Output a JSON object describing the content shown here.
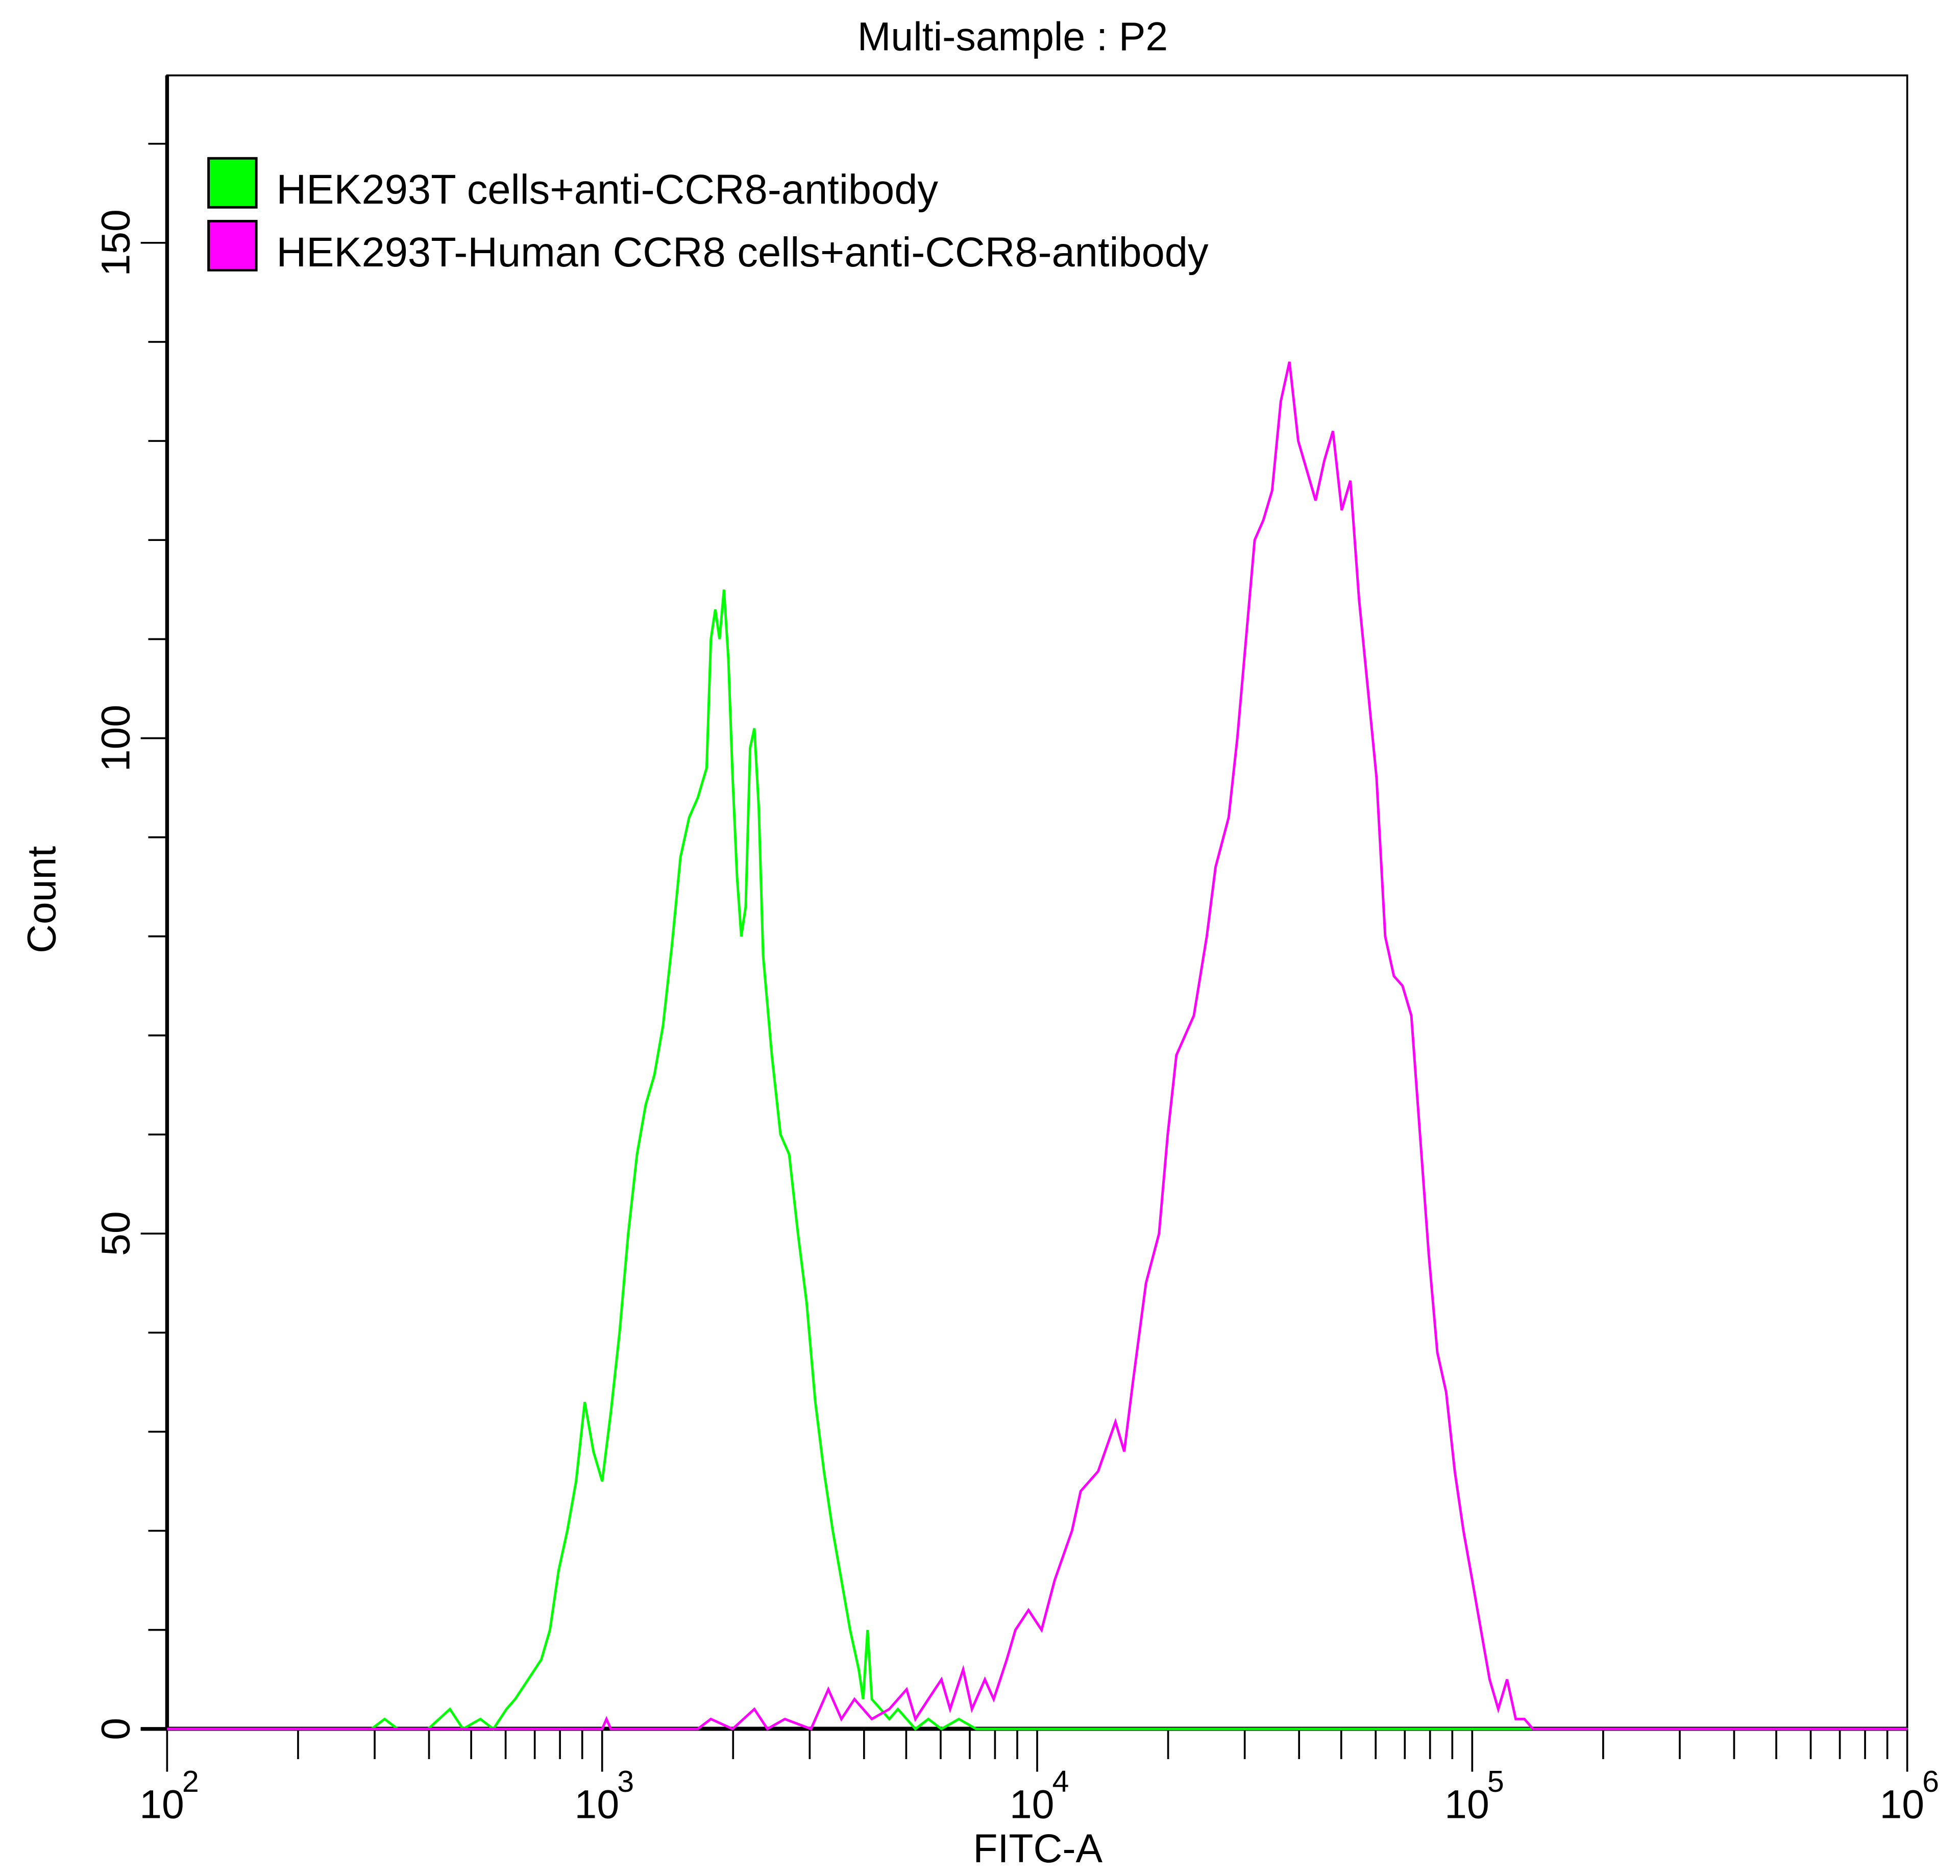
{
  "chart_data": {
    "type": "line",
    "title": "Multi-sample : P2",
    "xlabel": "FITC-A",
    "ylabel": "Count",
    "x_scale": "log10",
    "xlim": [
      100,
      1000000
    ],
    "ylim": [
      0,
      166
    ],
    "x_tick_labels": [
      {
        "base": "10",
        "exp": "2",
        "value": 100
      },
      {
        "base": "10",
        "exp": "3",
        "value": 1000
      },
      {
        "base": "10",
        "exp": "4",
        "value": 10000
      },
      {
        "base": "10",
        "exp": "5",
        "value": 100000
      },
      {
        "base": "10",
        "exp": "6",
        "value": 1000000
      }
    ],
    "y_ticks": [
      0,
      50,
      100,
      150
    ],
    "y_minor_step": 10,
    "grid": false,
    "legend_position": "top-left",
    "series": [
      {
        "name": "HEK293T cells+anti-CCR8-antibody",
        "color": "#00ff00",
        "points_log10x_count": [
          [
            2.0,
            0
          ],
          [
            2.47,
            0
          ],
          [
            2.5,
            1
          ],
          [
            2.53,
            0
          ],
          [
            2.6,
            0
          ],
          [
            2.65,
            2
          ],
          [
            2.68,
            0
          ],
          [
            2.72,
            1
          ],
          [
            2.75,
            0
          ],
          [
            2.78,
            2
          ],
          [
            2.8,
            3
          ],
          [
            2.83,
            5
          ],
          [
            2.86,
            7
          ],
          [
            2.88,
            10
          ],
          [
            2.9,
            16
          ],
          [
            2.92,
            20
          ],
          [
            2.94,
            25
          ],
          [
            2.96,
            33
          ],
          [
            2.98,
            28
          ],
          [
            3.0,
            25
          ],
          [
            3.02,
            32
          ],
          [
            3.04,
            40
          ],
          [
            3.06,
            50
          ],
          [
            3.08,
            58
          ],
          [
            3.1,
            63
          ],
          [
            3.12,
            66
          ],
          [
            3.14,
            71
          ],
          [
            3.16,
            79
          ],
          [
            3.18,
            88
          ],
          [
            3.2,
            92
          ],
          [
            3.22,
            94
          ],
          [
            3.24,
            97
          ],
          [
            3.25,
            110
          ],
          [
            3.26,
            113
          ],
          [
            3.27,
            110
          ],
          [
            3.28,
            115
          ],
          [
            3.29,
            108
          ],
          [
            3.3,
            96
          ],
          [
            3.31,
            86
          ],
          [
            3.32,
            80
          ],
          [
            3.33,
            83
          ],
          [
            3.34,
            99
          ],
          [
            3.35,
            101
          ],
          [
            3.36,
            93
          ],
          [
            3.37,
            78
          ],
          [
            3.39,
            68
          ],
          [
            3.41,
            60
          ],
          [
            3.43,
            58
          ],
          [
            3.45,
            50
          ],
          [
            3.47,
            43
          ],
          [
            3.49,
            33
          ],
          [
            3.51,
            26
          ],
          [
            3.53,
            20
          ],
          [
            3.55,
            15
          ],
          [
            3.57,
            10
          ],
          [
            3.59,
            6
          ],
          [
            3.6,
            3
          ],
          [
            3.61,
            10
          ],
          [
            3.62,
            3
          ],
          [
            3.64,
            2
          ],
          [
            3.66,
            1
          ],
          [
            3.68,
            2
          ],
          [
            3.7,
            1
          ],
          [
            3.72,
            0
          ],
          [
            3.75,
            1
          ],
          [
            3.78,
            0
          ],
          [
            3.82,
            1
          ],
          [
            3.86,
            0
          ],
          [
            3.9,
            0
          ],
          [
            4.0,
            0
          ],
          [
            6.0,
            0
          ]
        ]
      },
      {
        "name": "HEK293T-Human CCR8 cells+anti-CCR8-antibody",
        "color": "#ff00ff",
        "points_log10x_count": [
          [
            2.0,
            0
          ],
          [
            3.0,
            0
          ],
          [
            3.01,
            1
          ],
          [
            3.02,
            0
          ],
          [
            3.22,
            0
          ],
          [
            3.25,
            1
          ],
          [
            3.3,
            0
          ],
          [
            3.35,
            2
          ],
          [
            3.38,
            0
          ],
          [
            3.42,
            1
          ],
          [
            3.48,
            0
          ],
          [
            3.52,
            4
          ],
          [
            3.55,
            1
          ],
          [
            3.58,
            3
          ],
          [
            3.62,
            1
          ],
          [
            3.66,
            2
          ],
          [
            3.7,
            4
          ],
          [
            3.72,
            1
          ],
          [
            3.75,
            3
          ],
          [
            3.78,
            5
          ],
          [
            3.8,
            2
          ],
          [
            3.83,
            6
          ],
          [
            3.85,
            2
          ],
          [
            3.88,
            5
          ],
          [
            3.9,
            3
          ],
          [
            3.93,
            7
          ],
          [
            3.95,
            10
          ],
          [
            3.98,
            12
          ],
          [
            4.01,
            10
          ],
          [
            4.04,
            15
          ],
          [
            4.08,
            20
          ],
          [
            4.1,
            24
          ],
          [
            4.14,
            26
          ],
          [
            4.18,
            31
          ],
          [
            4.2,
            28
          ],
          [
            4.22,
            35
          ],
          [
            4.25,
            45
          ],
          [
            4.28,
            50
          ],
          [
            4.3,
            60
          ],
          [
            4.32,
            68
          ],
          [
            4.36,
            72
          ],
          [
            4.39,
            80
          ],
          [
            4.41,
            87
          ],
          [
            4.44,
            92
          ],
          [
            4.46,
            100
          ],
          [
            4.48,
            110
          ],
          [
            4.5,
            120
          ],
          [
            4.52,
            122
          ],
          [
            4.54,
            125
          ],
          [
            4.56,
            134
          ],
          [
            4.58,
            138
          ],
          [
            4.6,
            130
          ],
          [
            4.62,
            127
          ],
          [
            4.64,
            124
          ],
          [
            4.66,
            128
          ],
          [
            4.68,
            131
          ],
          [
            4.7,
            123
          ],
          [
            4.72,
            126
          ],
          [
            4.74,
            114
          ],
          [
            4.76,
            105
          ],
          [
            4.78,
            96
          ],
          [
            4.8,
            80
          ],
          [
            4.82,
            76
          ],
          [
            4.84,
            75
          ],
          [
            4.86,
            72
          ],
          [
            4.88,
            60
          ],
          [
            4.9,
            48
          ],
          [
            4.92,
            38
          ],
          [
            4.94,
            34
          ],
          [
            4.96,
            26
          ],
          [
            4.98,
            20
          ],
          [
            5.0,
            15
          ],
          [
            5.02,
            10
          ],
          [
            5.04,
            5
          ],
          [
            5.06,
            2
          ],
          [
            5.08,
            5
          ],
          [
            5.1,
            1
          ],
          [
            5.12,
            1
          ],
          [
            5.14,
            0
          ],
          [
            6.0,
            0
          ]
        ]
      }
    ]
  }
}
